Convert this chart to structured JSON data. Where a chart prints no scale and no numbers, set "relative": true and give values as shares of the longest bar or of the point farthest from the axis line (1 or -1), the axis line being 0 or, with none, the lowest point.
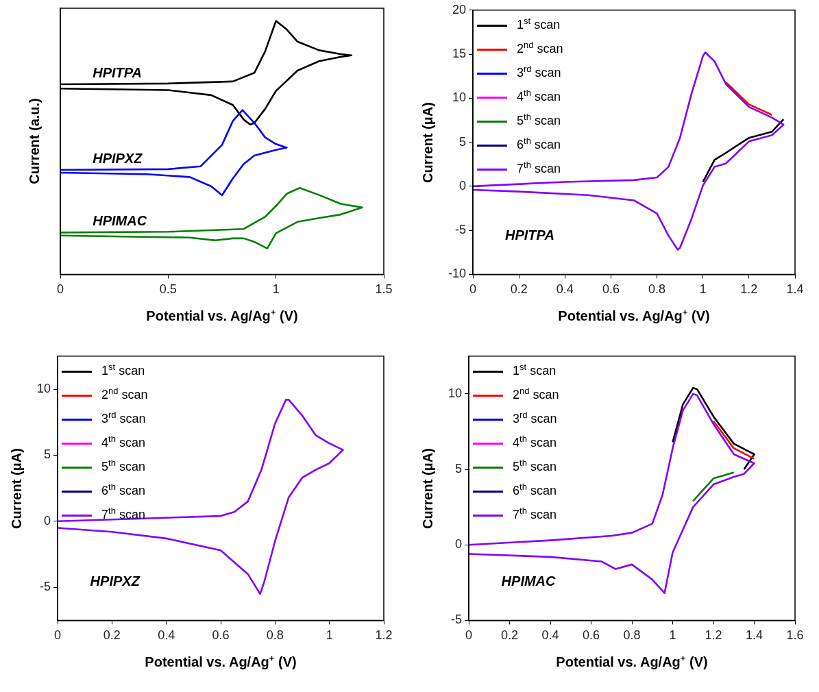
{
  "chart_data": [
    {
      "type": "line",
      "relative": true,
      "xlabel": "Potential vs. Ag/Ag$^{+}$ (V)",
      "ylabel": "Current (a.u.)",
      "xlim": [
        0,
        1.5
      ],
      "xticks": [
        0,
        0.5,
        1,
        1.5
      ],
      "tick_labels": "x",
      "series": [
        {
          "name": "HPITPA",
          "color": "#000000",
          "x": [
            0,
            0.5,
            0.8,
            0.9,
            0.95,
            1.0,
            1.05,
            1.1,
            1.2,
            1.3,
            1.35,
            1.3,
            1.2,
            1.1,
            1.0,
            0.95,
            0.9,
            0.88,
            0.85,
            0.8,
            0.7,
            0.5,
            0
          ],
          "values": [
            0.75,
            0.753,
            0.761,
            0.795,
            0.88,
            1.0,
            0.966,
            0.918,
            0.884,
            0.869,
            0.864,
            0.858,
            0.841,
            0.804,
            0.724,
            0.653,
            0.597,
            0.591,
            0.611,
            0.668,
            0.707,
            0.727,
            0.733
          ]
        },
        {
          "name": "HPIPXZ",
          "color": "#0000ff",
          "x": [
            0,
            0.5,
            0.65,
            0.75,
            0.8,
            0.845,
            0.9,
            0.95,
            1.0,
            1.05,
            1.0,
            0.9,
            0.85,
            0.8,
            0.75,
            0.7,
            0.6,
            0.4,
            0
          ],
          "values": [
            0.412,
            0.415,
            0.426,
            0.511,
            0.605,
            0.648,
            0.597,
            0.54,
            0.514,
            0.5,
            0.491,
            0.469,
            0.435,
            0.378,
            0.312,
            0.347,
            0.384,
            0.395,
            0.401
          ]
        },
        {
          "name": "HPIMAC",
          "color": "#008000",
          "x": [
            0,
            0.5,
            0.85,
            0.95,
            1.0,
            1.05,
            1.11,
            1.2,
            1.3,
            1.4,
            1.3,
            1.2,
            1.1,
            1.0,
            0.96,
            0.9,
            0.85,
            0.8,
            0.72,
            0.6,
            0
          ],
          "values": [
            0.165,
            0.168,
            0.179,
            0.227,
            0.27,
            0.318,
            0.341,
            0.313,
            0.278,
            0.264,
            0.236,
            0.222,
            0.207,
            0.162,
            0.102,
            0.128,
            0.142,
            0.142,
            0.134,
            0.145,
            0.153
          ]
        }
      ]
    },
    {
      "type": "line",
      "xlabel": "Potential vs. Ag/Ag$^{+}$ (V)",
      "ylabel": "Current (μA)",
      "xlim": [
        0,
        1.4
      ],
      "xticks": [
        0,
        0.2,
        0.4,
        0.6,
        0.8,
        1.0,
        1.2,
        1.4
      ],
      "ylim": [
        -10,
        20
      ],
      "yticks": [
        -10,
        -5,
        0,
        5,
        10,
        15,
        20
      ],
      "legend": "top left",
      "annotations": [
        "HPITPA"
      ],
      "x": [
        0,
        0.4,
        0.7,
        0.8,
        0.85,
        0.9,
        0.95,
        1.0,
        1.01,
        1.05,
        1.1,
        1.2,
        1.3,
        1.35,
        1.3,
        1.2,
        1.1,
        1.05,
        1.0,
        0.95,
        0.9,
        0.89,
        0.85,
        0.8,
        0.7,
        0.5,
        0.2,
        0
      ],
      "series": [
        {
          "name": "1$^{st}$ scan",
          "color": "#000000",
          "values": [
            null,
            null,
            null,
            null,
            null,
            null,
            null,
            null,
            null,
            null,
            null,
            null,
            null,
            7.6,
            6.2,
            5.5,
            3.8,
            3,
            0.5,
            null,
            null,
            null,
            null,
            null,
            null,
            null,
            null,
            null
          ]
        },
        {
          "name": "2$^{nd}$ scan",
          "color": "#ff0000",
          "values": [
            null,
            null,
            null,
            null,
            null,
            null,
            null,
            null,
            null,
            null,
            11.8,
            9.3,
            8.1,
            null,
            null,
            null,
            null,
            null,
            null,
            null,
            null,
            null,
            null,
            null,
            null,
            null,
            null,
            null
          ]
        },
        {
          "name": "3$^{rd}$ scan",
          "color": "#0000ff",
          "values": [
            null,
            null,
            null,
            null,
            null,
            null,
            null,
            null,
            null,
            null,
            null,
            null,
            null,
            null,
            null,
            null,
            null,
            null,
            null,
            null,
            null,
            null,
            null,
            null,
            null,
            null,
            null,
            null
          ]
        },
        {
          "name": "4$^{th}$ scan",
          "color": "#ff00ff",
          "values": [
            null,
            null,
            null,
            null,
            null,
            null,
            null,
            null,
            null,
            null,
            null,
            null,
            null,
            null,
            null,
            null,
            null,
            null,
            null,
            null,
            null,
            null,
            null,
            null,
            null,
            null,
            null,
            null
          ]
        },
        {
          "name": "5$^{th}$ scan",
          "color": "#008000",
          "values": [
            null,
            null,
            null,
            null,
            null,
            null,
            null,
            null,
            null,
            null,
            null,
            null,
            null,
            null,
            null,
            null,
            null,
            null,
            null,
            null,
            null,
            null,
            null,
            null,
            null,
            null,
            null,
            null
          ]
        },
        {
          "name": "6$^{th}$ scan",
          "color": "#000080",
          "values": [
            null,
            null,
            null,
            null,
            null,
            null,
            null,
            null,
            null,
            null,
            null,
            null,
            null,
            null,
            null,
            null,
            null,
            null,
            null,
            null,
            null,
            null,
            null,
            null,
            null,
            null,
            null,
            null
          ]
        },
        {
          "name": "7$^{th}$ scan",
          "color": "#8000ff",
          "values": [
            0,
            0.5,
            0.7,
            1.0,
            2.2,
            5.5,
            10.5,
            14.8,
            15.2,
            14.2,
            11.6,
            9.0,
            7.8,
            7.0,
            5.8,
            5.1,
            2.6,
            2.2,
            0.1,
            -3.7,
            -7.0,
            -7.2,
            -5.6,
            -3.1,
            -1.6,
            -1,
            -0.6,
            -0.4
          ]
        }
      ]
    },
    {
      "type": "line",
      "xlabel": "Potential vs. Ag/Ag$^{+}$ (V)",
      "ylabel": "Current (μA)",
      "xlim": [
        0,
        1.2
      ],
      "xticks": [
        0,
        0.2,
        0.4,
        0.6,
        0.8,
        1.0,
        1.2
      ],
      "ylim": [
        -7.5,
        12.5
      ],
      "yticks": [
        -5,
        0,
        5,
        10
      ],
      "legend": "top left",
      "annotations": [
        "HPIPXZ"
      ],
      "x": [
        0,
        0.3,
        0.6,
        0.65,
        0.7,
        0.75,
        0.8,
        0.84,
        0.85,
        0.9,
        0.95,
        1.0,
        1.05,
        1.0,
        0.95,
        0.9,
        0.85,
        0.8,
        0.76,
        0.745,
        0.7,
        0.6,
        0.4,
        0.2,
        0
      ],
      "series": [
        {
          "name": "1$^{st}$ scan",
          "color": "#000000",
          "values": [
            null,
            null,
            null,
            null,
            null,
            null,
            null,
            null,
            null,
            null,
            null,
            null,
            null,
            null,
            null,
            null,
            null,
            null,
            null,
            null,
            null,
            null,
            null,
            null,
            null
          ]
        },
        {
          "name": "2$^{nd}$ scan",
          "color": "#ff0000",
          "values": [
            null,
            null,
            null,
            null,
            null,
            null,
            null,
            null,
            null,
            null,
            null,
            null,
            null,
            null,
            null,
            null,
            null,
            null,
            null,
            null,
            null,
            null,
            null,
            null,
            null
          ]
        },
        {
          "name": "3$^{rd}$ scan",
          "color": "#0000ff",
          "values": [
            null,
            null,
            null,
            null,
            null,
            null,
            null,
            null,
            null,
            null,
            null,
            null,
            null,
            null,
            null,
            null,
            null,
            null,
            null,
            null,
            null,
            null,
            null,
            null,
            null
          ]
        },
        {
          "name": "4$^{th}$ scan",
          "color": "#ff00ff",
          "values": [
            null,
            null,
            null,
            null,
            null,
            null,
            null,
            null,
            null,
            null,
            null,
            null,
            null,
            null,
            null,
            null,
            null,
            null,
            null,
            null,
            null,
            null,
            null,
            null,
            null
          ]
        },
        {
          "name": "5$^{th}$ scan",
          "color": "#008000",
          "values": [
            null,
            null,
            null,
            null,
            null,
            null,
            null,
            null,
            null,
            null,
            null,
            null,
            null,
            null,
            null,
            null,
            null,
            null,
            null,
            null,
            null,
            null,
            null,
            null,
            null
          ]
        },
        {
          "name": "6$^{th}$ scan",
          "color": "#000080",
          "values": [
            null,
            null,
            null,
            null,
            null,
            null,
            null,
            null,
            null,
            null,
            null,
            null,
            null,
            null,
            null,
            null,
            null,
            null,
            null,
            null,
            null,
            null,
            null,
            null,
            null
          ]
        },
        {
          "name": "7$^{th}$ scan",
          "color": "#8000ff",
          "values": [
            0,
            0.2,
            0.4,
            0.7,
            1.5,
            3.9,
            7.4,
            9.2,
            9.2,
            8,
            6.5,
            5.9,
            5.4,
            4.4,
            3.9,
            3.3,
            1.8,
            -1.5,
            -4.6,
            -5.5,
            -4,
            -2.2,
            -1.3,
            -0.8,
            -0.5
          ]
        }
      ]
    },
    {
      "type": "line",
      "xlabel": "Potential vs. Ag/Ag$^{+}$ (V)",
      "ylabel": "Current (μA)",
      "xlim": [
        0,
        1.6
      ],
      "xticks": [
        0,
        0.2,
        0.4,
        0.6,
        0.8,
        1.0,
        1.2,
        1.4,
        1.6
      ],
      "ylim": [
        -5,
        12.5
      ],
      "yticks": [
        -5,
        0,
        5,
        10
      ],
      "legend": "top left",
      "annotations": [
        "HPIMAC"
      ],
      "x": [
        0,
        0.4,
        0.7,
        0.8,
        0.9,
        0.95,
        1.0,
        1.05,
        1.1,
        1.12,
        1.2,
        1.3,
        1.4,
        1.35,
        1.3,
        1.2,
        1.1,
        1.0,
        0.96,
        0.9,
        0.8,
        0.72,
        0.65,
        0.4,
        0
      ],
      "series": [
        {
          "name": "1$^{st}$ scan",
          "color": "#000000",
          "values": [
            null,
            null,
            null,
            null,
            null,
            null,
            6.8,
            9.3,
            10.4,
            10.3,
            8.5,
            6.7,
            6.0,
            5.0,
            null,
            null,
            null,
            null,
            null,
            null,
            null,
            null,
            null,
            null,
            null
          ]
        },
        {
          "name": "2$^{nd}$ scan",
          "color": "#ff0000",
          "values": [
            null,
            null,
            null,
            null,
            null,
            null,
            null,
            null,
            null,
            null,
            8.2,
            6.4,
            5.7,
            null,
            null,
            null,
            null,
            null,
            null,
            null,
            null,
            null,
            null,
            null,
            null
          ]
        },
        {
          "name": "3$^{rd}$ scan",
          "color": "#0000ff",
          "values": [
            null,
            null,
            null,
            null,
            null,
            null,
            null,
            null,
            null,
            null,
            null,
            null,
            null,
            null,
            null,
            null,
            null,
            null,
            null,
            null,
            null,
            null,
            null,
            null,
            null
          ]
        },
        {
          "name": "4$^{th}$ scan",
          "color": "#ff00ff",
          "values": [
            null,
            null,
            null,
            null,
            null,
            null,
            null,
            null,
            null,
            null,
            null,
            null,
            null,
            null,
            null,
            null,
            null,
            null,
            null,
            null,
            null,
            null,
            null,
            null,
            null
          ]
        },
        {
          "name": "5$^{th}$ scan",
          "color": "#008000",
          "values": [
            null,
            null,
            null,
            null,
            null,
            null,
            null,
            null,
            null,
            null,
            null,
            null,
            null,
            null,
            4.8,
            4.4,
            2.9,
            null,
            null,
            null,
            null,
            null,
            null,
            null,
            null
          ]
        },
        {
          "name": "6$^{th}$ scan",
          "color": "#000080",
          "values": [
            null,
            null,
            null,
            null,
            null,
            null,
            null,
            null,
            null,
            null,
            null,
            null,
            null,
            null,
            null,
            null,
            null,
            null,
            null,
            null,
            null,
            null,
            null,
            null,
            null
          ]
        },
        {
          "name": "7$^{th}$ scan",
          "color": "#8000ff",
          "values": [
            0,
            0.3,
            0.6,
            0.8,
            1.4,
            3.3,
            6.4,
            8.9,
            10.0,
            9.9,
            8.0,
            6.0,
            5.4,
            4.7,
            4.5,
            4.0,
            2.5,
            -0.5,
            -3.2,
            -2.3,
            -1.3,
            -1.6,
            -1.1,
            -0.8,
            -0.6
          ]
        }
      ]
    }
  ]
}
